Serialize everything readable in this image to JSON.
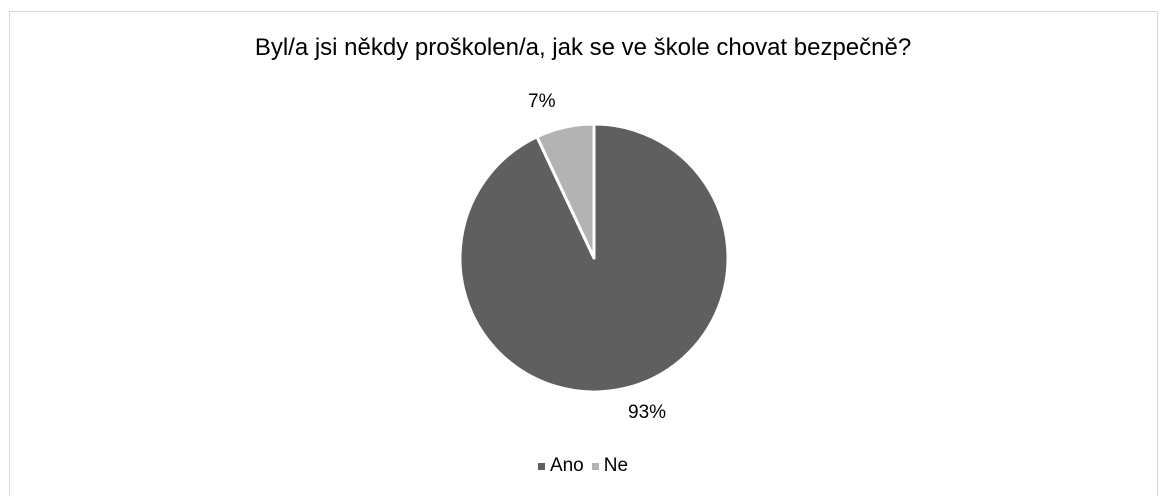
{
  "chart_data": {
    "type": "pie",
    "title": "Byl/a jsi někdy proškolen/a, jak se ve škole chovat bezpečně?",
    "categories": [
      "Ano",
      "Ne"
    ],
    "values": [
      93,
      7
    ],
    "data_labels": [
      "93%",
      "7%"
    ],
    "colors": [
      "#5f5f5f",
      "#b3b3b3"
    ],
    "legend_position": "bottom"
  }
}
